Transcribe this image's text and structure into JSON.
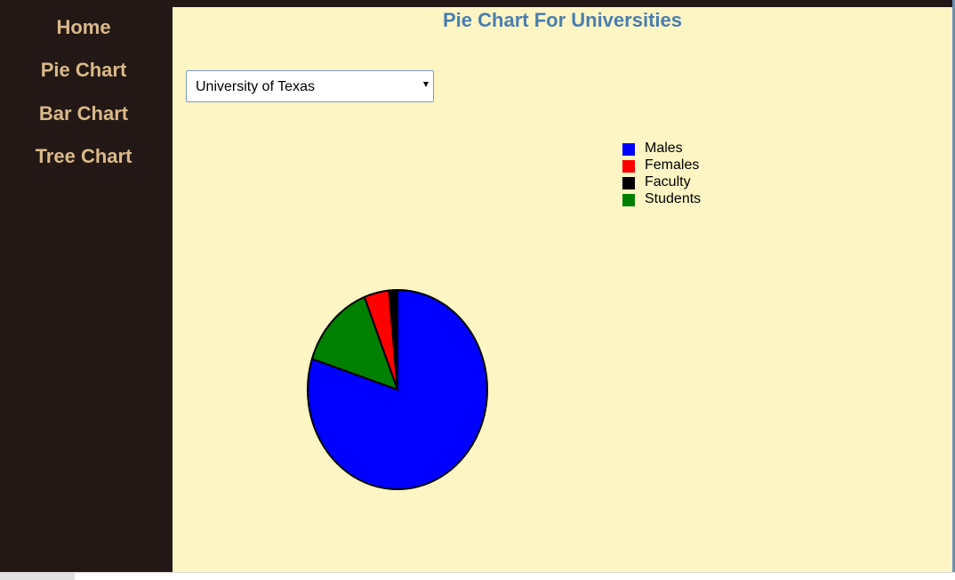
{
  "nav": {
    "items": [
      {
        "label": "Home"
      },
      {
        "label": "Pie Chart"
      },
      {
        "label": "Bar Chart"
      },
      {
        "label": "Tree Chart"
      }
    ]
  },
  "main": {
    "title": "Pie Chart For Universities",
    "select": {
      "value": "University of Texas",
      "options": [
        "University of Texas"
      ]
    }
  },
  "colors": {
    "sidebar_bg": "#231815",
    "nav_text": "#d9b98a",
    "content_bg": "#fdf5c4",
    "title_text": "#4a7eb0"
  },
  "chart_data": {
    "type": "pie",
    "title": "",
    "legend_placement": "top-right",
    "slices": [
      {
        "label": "Males",
        "value": 80,
        "color": "#0000ff"
      },
      {
        "label": "Students",
        "value": 14,
        "color": "#008000"
      },
      {
        "label": "Females",
        "value": 4.5,
        "color": "#ff0000"
      },
      {
        "label": "Faculty",
        "value": 1.5,
        "color": "#000000"
      }
    ],
    "legend": [
      {
        "label": "Males",
        "color": "#0000ff"
      },
      {
        "label": "Females",
        "color": "#ff0000"
      },
      {
        "label": "Faculty",
        "color": "#000000"
      },
      {
        "label": "Students",
        "color": "#008000"
      }
    ]
  }
}
